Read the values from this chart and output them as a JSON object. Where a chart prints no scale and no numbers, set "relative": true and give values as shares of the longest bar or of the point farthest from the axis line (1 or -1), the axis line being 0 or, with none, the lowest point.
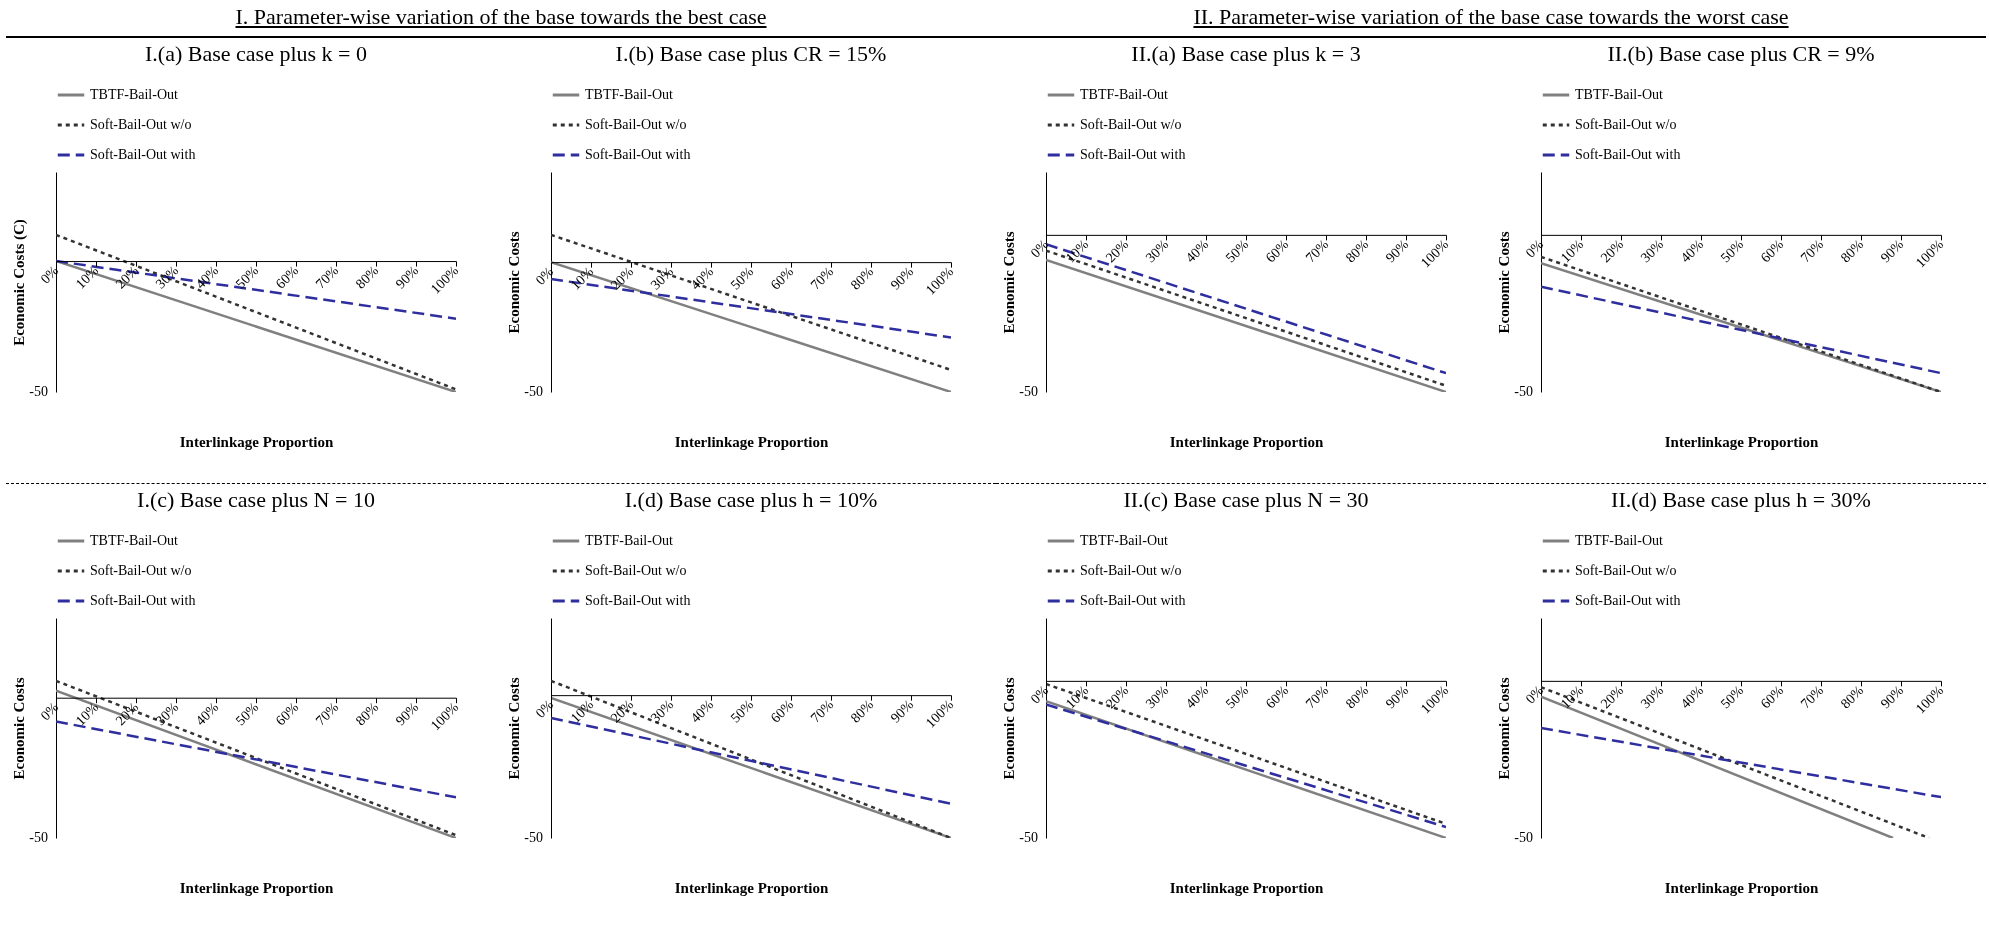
{
  "chart_data": [
    {
      "type": "line",
      "relative": true,
      "title": "I.(a) Base case plus k = 0",
      "subtitle": "I. Parameter-wise variation of the base towards the best case",
      "annotations": [
        "-50"
      ],
      "xlabel": "Interlinkage Proportion",
      "ylabel": "Economic Costs (C)",
      "xlim": [
        0,
        100
      ],
      "xticks": [
        {
          "value": 0,
          "label": "0%"
        },
        {
          "value": 10,
          "label": "10%"
        },
        {
          "value": 20,
          "label": "20%"
        },
        {
          "value": 30,
          "label": "30%"
        },
        {
          "value": 40,
          "label": "40%"
        },
        {
          "value": 50,
          "label": "50%"
        },
        {
          "value": 60,
          "label": "60%"
        },
        {
          "value": 70,
          "label": "70%"
        },
        {
          "value": 80,
          "label": "80%"
        },
        {
          "value": 90,
          "label": "90%"
        },
        {
          "value": 100,
          "label": "100%"
        }
      ],
      "legend": "top",
      "series": [
        {
          "name": "TBTF-Bail-Out",
          "color": "#808080",
          "line_style": "solid",
          "x": [
            0,
            100
          ],
          "values": [
            0,
            -1
          ]
        },
        {
          "name": "Soft-Bail-Out w/o",
          "color": "#333333",
          "line_style": "dotted",
          "x": [
            0,
            100
          ],
          "values": [
            0.2,
            -0.98
          ]
        },
        {
          "name": "Soft-Bail-Out with",
          "color": "#2e2e9e",
          "line_style": "dashed",
          "x": [
            0,
            100
          ],
          "values": [
            0,
            -0.44
          ]
        }
      ]
    },
    {
      "type": "line",
      "relative": true,
      "title": "I.(b) Base case plus CR = 15%",
      "annotations": [
        "-50"
      ],
      "xlabel": "Interlinkage Proportion",
      "ylabel": "Economic Costs",
      "xlim": [
        0,
        100
      ],
      "xticks": [
        {
          "value": 0,
          "label": "0%"
        },
        {
          "value": 10,
          "label": "10%"
        },
        {
          "value": 20,
          "label": "20%"
        },
        {
          "value": 30,
          "label": "30%"
        },
        {
          "value": 40,
          "label": "40%"
        },
        {
          "value": 50,
          "label": "50%"
        },
        {
          "value": 60,
          "label": "60%"
        },
        {
          "value": 70,
          "label": "70%"
        },
        {
          "value": 80,
          "label": "80%"
        },
        {
          "value": 90,
          "label": "90%"
        },
        {
          "value": 100,
          "label": "100%"
        }
      ],
      "legend": "top",
      "series": [
        {
          "name": "TBTF-Bail-Out",
          "color": "#808080",
          "line_style": "solid",
          "x": [
            0,
            100
          ],
          "values": [
            0,
            -1
          ]
        },
        {
          "name": "Soft-Bail-Out w/o",
          "color": "#333333",
          "line_style": "dotted",
          "x": [
            0,
            100
          ],
          "values": [
            0.21,
            -0.83
          ]
        },
        {
          "name": "Soft-Bail-Out with",
          "color": "#2e2e9e",
          "line_style": "dashed",
          "x": [
            0,
            100
          ],
          "values": [
            -0.13,
            -0.58
          ]
        }
      ]
    },
    {
      "type": "line",
      "relative": true,
      "title": "II.(a) Base case plus k = 3",
      "subtitle": "II. Parameter-wise variation of the base case towards the worst case",
      "annotations": [
        "-50"
      ],
      "xlabel": "Interlinkage Proportion",
      "ylabel": "Economic Costs",
      "xlim": [
        0,
        100
      ],
      "xticks": [
        {
          "value": 0,
          "label": "0%"
        },
        {
          "value": 10,
          "label": "10%"
        },
        {
          "value": 20,
          "label": "20%"
        },
        {
          "value": 30,
          "label": "30%"
        },
        {
          "value": 40,
          "label": "40%"
        },
        {
          "value": 50,
          "label": "50%"
        },
        {
          "value": 60,
          "label": "60%"
        },
        {
          "value": 70,
          "label": "70%"
        },
        {
          "value": 80,
          "label": "80%"
        },
        {
          "value": 90,
          "label": "90%"
        },
        {
          "value": 100,
          "label": "100%"
        }
      ],
      "legend": "top",
      "series": [
        {
          "name": "TBTF-Bail-Out",
          "color": "#808080",
          "line_style": "solid",
          "x": [
            0,
            100
          ],
          "values": [
            -0.16,
            -1
          ]
        },
        {
          "name": "Soft-Bail-Out w/o",
          "color": "#333333",
          "line_style": "dotted",
          "x": [
            0,
            100
          ],
          "values": [
            -0.1,
            -0.96
          ]
        },
        {
          "name": "Soft-Bail-Out with",
          "color": "#2e2e9e",
          "line_style": "dashed",
          "x": [
            0,
            100
          ],
          "values": [
            -0.06,
            -0.88
          ]
        }
      ]
    },
    {
      "type": "line",
      "relative": true,
      "title": "II.(b) Base case plus CR = 9%",
      "annotations": [
        "-50"
      ],
      "xlabel": "Interlinkage Proportion",
      "ylabel": "Economic Costs",
      "xlim": [
        0,
        100
      ],
      "xticks": [
        {
          "value": 0,
          "label": "0%"
        },
        {
          "value": 10,
          "label": "10%"
        },
        {
          "value": 20,
          "label": "20%"
        },
        {
          "value": 30,
          "label": "30%"
        },
        {
          "value": 40,
          "label": "40%"
        },
        {
          "value": 50,
          "label": "50%"
        },
        {
          "value": 60,
          "label": "60%"
        },
        {
          "value": 70,
          "label": "70%"
        },
        {
          "value": 80,
          "label": "80%"
        },
        {
          "value": 90,
          "label": "90%"
        },
        {
          "value": 100,
          "label": "100%"
        }
      ],
      "legend": "top",
      "series": [
        {
          "name": "TBTF-Bail-Out",
          "color": "#808080",
          "line_style": "solid",
          "x": [
            0,
            100
          ],
          "values": [
            -0.18,
            -1
          ]
        },
        {
          "name": "Soft-Bail-Out w/o",
          "color": "#333333",
          "line_style": "dotted",
          "x": [
            0,
            100
          ],
          "values": [
            -0.14,
            -1
          ]
        },
        {
          "name": "Soft-Bail-Out with",
          "color": "#2e2e9e",
          "line_style": "dashed",
          "x": [
            0,
            100
          ],
          "values": [
            -0.33,
            -0.88
          ]
        }
      ]
    },
    {
      "type": "line",
      "relative": true,
      "title": "I.(c) Base case plus N = 10",
      "annotations": [
        "-50"
      ],
      "xlabel": "Interlinkage Proportion",
      "ylabel": "Economic Costs",
      "xlim": [
        0,
        100
      ],
      "xticks": [
        {
          "value": 0,
          "label": "0%"
        },
        {
          "value": 10,
          "label": "10%"
        },
        {
          "value": 20,
          "label": "20%"
        },
        {
          "value": 30,
          "label": "30%"
        },
        {
          "value": 40,
          "label": "40%"
        },
        {
          "value": 50,
          "label": "50%"
        },
        {
          "value": 60,
          "label": "60%"
        },
        {
          "value": 70,
          "label": "70%"
        },
        {
          "value": 80,
          "label": "80%"
        },
        {
          "value": 90,
          "label": "90%"
        },
        {
          "value": 100,
          "label": "100%"
        }
      ],
      "legend": "top",
      "series": [
        {
          "name": "TBTF-Bail-Out",
          "color": "#808080",
          "line_style": "solid",
          "x": [
            0,
            100
          ],
          "values": [
            0.05,
            -1
          ]
        },
        {
          "name": "Soft-Bail-Out w/o",
          "color": "#333333",
          "line_style": "dotted",
          "x": [
            0,
            100
          ],
          "values": [
            0.12,
            -0.98
          ]
        },
        {
          "name": "Soft-Bail-Out with",
          "color": "#2e2e9e",
          "line_style": "dashed",
          "x": [
            0,
            100
          ],
          "values": [
            -0.17,
            -0.71
          ]
        }
      ]
    },
    {
      "type": "line",
      "relative": true,
      "title": "I.(d) Base case plus h = 10%",
      "annotations": [
        "-50"
      ],
      "xlabel": "Interlinkage Proportion",
      "ylabel": "Economic Costs",
      "xlim": [
        0,
        100
      ],
      "xticks": [
        {
          "value": 0,
          "label": "0%"
        },
        {
          "value": 10,
          "label": "10%"
        },
        {
          "value": 20,
          "label": "20%"
        },
        {
          "value": 30,
          "label": "30%"
        },
        {
          "value": 40,
          "label": "40%"
        },
        {
          "value": 50,
          "label": "50%"
        },
        {
          "value": 60,
          "label": "60%"
        },
        {
          "value": 70,
          "label": "70%"
        },
        {
          "value": 80,
          "label": "80%"
        },
        {
          "value": 90,
          "label": "90%"
        },
        {
          "value": 100,
          "label": "100%"
        }
      ],
      "legend": "top",
      "series": [
        {
          "name": "TBTF-Bail-Out",
          "color": "#808080",
          "line_style": "solid",
          "x": [
            0,
            100
          ],
          "values": [
            -0.02,
            -1
          ]
        },
        {
          "name": "Soft-Bail-Out w/o",
          "color": "#333333",
          "line_style": "dotted",
          "x": [
            0,
            100
          ],
          "values": [
            0.1,
            -1
          ]
        },
        {
          "name": "Soft-Bail-Out with",
          "color": "#2e2e9e",
          "line_style": "dashed",
          "x": [
            0,
            100
          ],
          "values": [
            -0.16,
            -0.76
          ]
        }
      ]
    },
    {
      "type": "line",
      "relative": true,
      "title": "II.(c) Base case plus N = 30",
      "annotations": [
        "-50"
      ],
      "xlabel": "Interlinkage Proportion",
      "ylabel": "Economic Costs",
      "xlim": [
        0,
        100
      ],
      "xticks": [
        {
          "value": 0,
          "label": "0%"
        },
        {
          "value": 10,
          "label": "10%"
        },
        {
          "value": 20,
          "label": "20%"
        },
        {
          "value": 30,
          "label": "30%"
        },
        {
          "value": 40,
          "label": "40%"
        },
        {
          "value": 50,
          "label": "50%"
        },
        {
          "value": 60,
          "label": "60%"
        },
        {
          "value": 70,
          "label": "70%"
        },
        {
          "value": 80,
          "label": "80%"
        },
        {
          "value": 90,
          "label": "90%"
        },
        {
          "value": 100,
          "label": "100%"
        }
      ],
      "legend": "top",
      "series": [
        {
          "name": "TBTF-Bail-Out",
          "color": "#808080",
          "line_style": "solid",
          "x": [
            0,
            100
          ],
          "values": [
            -0.13,
            -1
          ]
        },
        {
          "name": "Soft-Bail-Out w/o",
          "color": "#333333",
          "line_style": "dotted",
          "x": [
            0,
            100
          ],
          "values": [
            -0.02,
            -0.91
          ]
        },
        {
          "name": "Soft-Bail-Out with",
          "color": "#2e2e9e",
          "line_style": "dashed",
          "x": [
            0,
            100
          ],
          "values": [
            -0.15,
            -0.93
          ]
        }
      ]
    },
    {
      "type": "line",
      "relative": true,
      "title": "II.(d) Base case plus h = 30%",
      "annotations": [
        "-50"
      ],
      "xlabel": "Interlinkage Proportion",
      "ylabel": "Economic Costs",
      "xlim": [
        0,
        100
      ],
      "xticks": [
        {
          "value": 0,
          "label": "0%"
        },
        {
          "value": 10,
          "label": "10%"
        },
        {
          "value": 20,
          "label": "20%"
        },
        {
          "value": 30,
          "label": "30%"
        },
        {
          "value": 40,
          "label": "40%"
        },
        {
          "value": 50,
          "label": "50%"
        },
        {
          "value": 60,
          "label": "60%"
        },
        {
          "value": 70,
          "label": "70%"
        },
        {
          "value": 80,
          "label": "80%"
        },
        {
          "value": 90,
          "label": "90%"
        },
        {
          "value": 100,
          "label": "100%"
        }
      ],
      "legend": "top",
      "series": [
        {
          "name": "TBTF-Bail-Out",
          "color": "#808080",
          "line_style": "solid",
          "x": [
            0,
            88
          ],
          "values": [
            -0.1,
            -1
          ]
        },
        {
          "name": "Soft-Bail-Out w/o",
          "color": "#333333",
          "line_style": "dotted",
          "x": [
            0,
            97
          ],
          "values": [
            -0.04,
            -1
          ]
        },
        {
          "name": "Soft-Bail-Out with",
          "color": "#2e2e9e",
          "line_style": "dashed",
          "x": [
            0,
            100
          ],
          "values": [
            -0.3,
            -0.74
          ]
        }
      ]
    }
  ]
}
